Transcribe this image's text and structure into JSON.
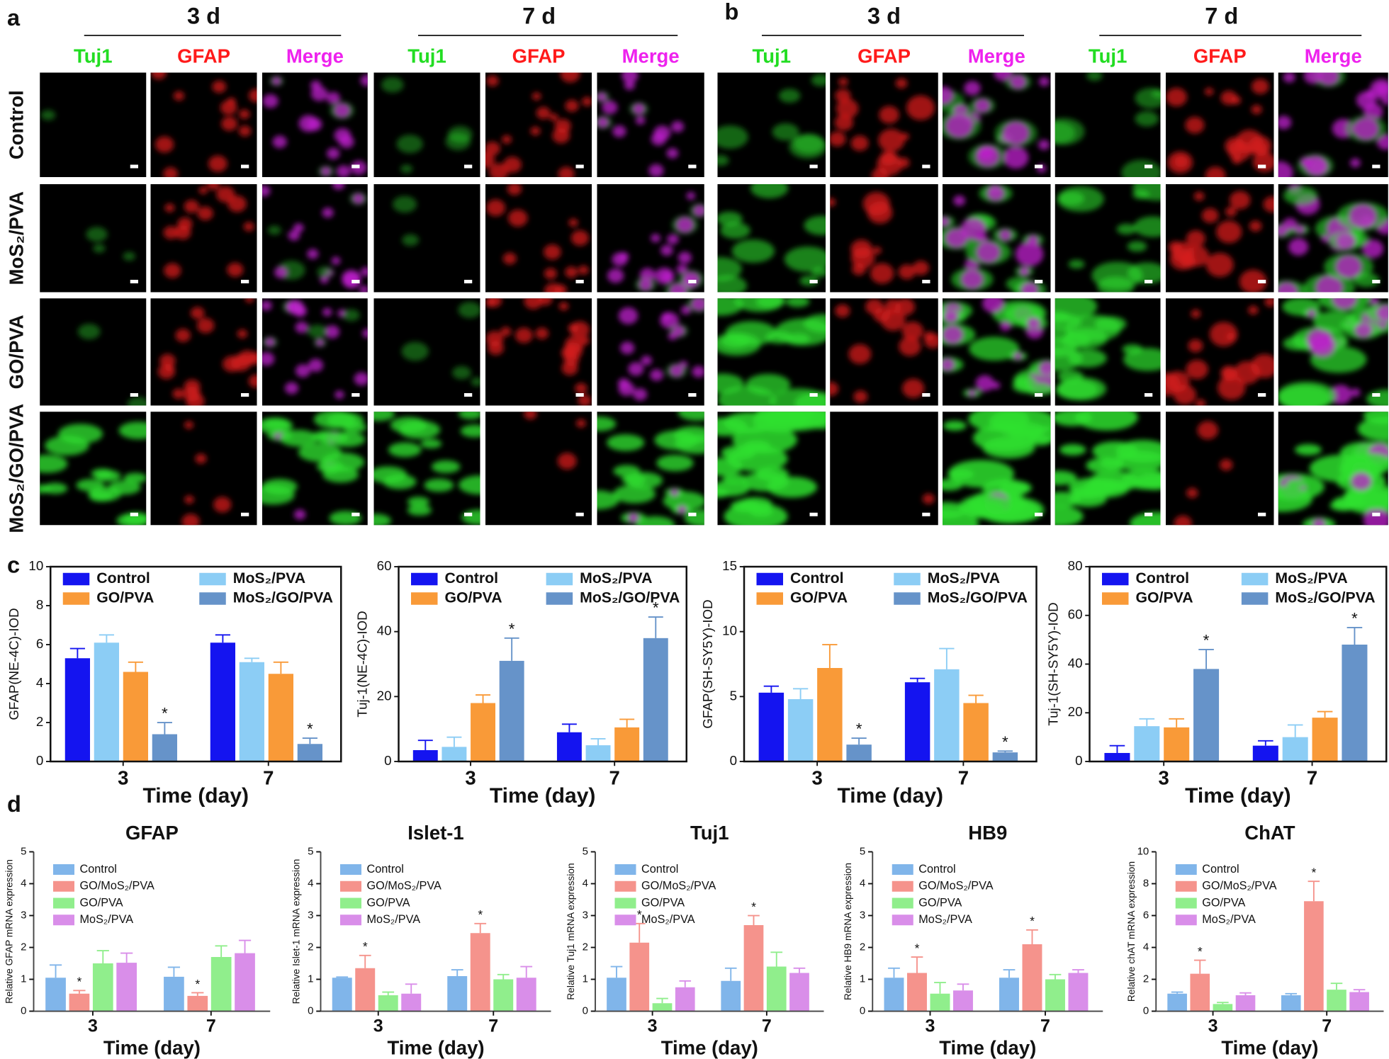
{
  "figure": {
    "rows": [
      "Control",
      "MoS₂/PVA",
      "GO/PVA",
      "MoS₂/GO/PVA"
    ],
    "image_panels": [
      {
        "label": "a",
        "groups": [
          {
            "title": "3 d",
            "channels": [
              "Tuj1",
              "GFAP",
              "Merge"
            ]
          },
          {
            "title": "7 d",
            "channels": [
              "Tuj1",
              "GFAP",
              "Merge"
            ]
          }
        ]
      },
      {
        "label": "b",
        "groups": [
          {
            "title": "3 d",
            "channels": [
              "Tuj1",
              "GFAP",
              "Merge"
            ]
          },
          {
            "title": "7 d",
            "channels": [
              "Tuj1",
              "GFAP",
              "Merge"
            ]
          }
        ]
      }
    ],
    "chart_panels": [
      "c",
      "d"
    ]
  },
  "chart_data": [
    {
      "type": "bar",
      "ylabel": "GFAP(NE-4C)-IOD",
      "xlabel": "Time (day)",
      "categories": [
        "3",
        "7"
      ],
      "ylim": [
        0,
        10
      ],
      "yticks": [
        0,
        2,
        4,
        6,
        8,
        10
      ],
      "frame": true,
      "legend": "top",
      "legend_columns": 2,
      "series": [
        {
          "name": "Control",
          "color": "#1414f0",
          "values": [
            5.3,
            6.1
          ],
          "errors": [
            0.5,
            0.4
          ],
          "significance": [
            null,
            null
          ]
        },
        {
          "name": "MoS₂/PVA",
          "color": "#8ccdf5",
          "values": [
            6.1,
            5.1
          ],
          "errors": [
            0.4,
            0.2
          ],
          "significance": [
            null,
            null
          ]
        },
        {
          "name": "GO/PVA",
          "color": "#f99a38",
          "values": [
            4.6,
            4.5
          ],
          "errors": [
            0.5,
            0.6
          ],
          "significance": [
            null,
            null
          ]
        },
        {
          "name": "MoS₂/GO/PVA",
          "color": "#6693c9",
          "values": [
            1.4,
            0.9
          ],
          "errors": [
            0.6,
            0.3
          ],
          "significance": [
            "*",
            "*"
          ]
        }
      ]
    },
    {
      "type": "bar",
      "ylabel": "Tuj-1(NE-4C)-IOD",
      "xlabel": "Time (day)",
      "categories": [
        "3",
        "7"
      ],
      "ylim": [
        0,
        60
      ],
      "yticks": [
        0,
        20,
        40,
        60
      ],
      "frame": true,
      "legend": "top",
      "legend_columns": 2,
      "series": [
        {
          "name": "Control",
          "color": "#1414f0",
          "values": [
            3.5,
            9
          ],
          "errors": [
            3,
            2.5
          ],
          "significance": [
            null,
            null
          ]
        },
        {
          "name": "MoS₂/PVA",
          "color": "#8ccdf5",
          "values": [
            4.5,
            5
          ],
          "errors": [
            3,
            2
          ],
          "significance": [
            null,
            null
          ]
        },
        {
          "name": "GO/PVA",
          "color": "#f99a38",
          "values": [
            18,
            10.5
          ],
          "errors": [
            2.5,
            2.5
          ],
          "significance": [
            null,
            null
          ]
        },
        {
          "name": "MoS₂/GO/PVA",
          "color": "#6693c9",
          "values": [
            31,
            38
          ],
          "errors": [
            7,
            6.5
          ],
          "significance": [
            "*",
            "*"
          ]
        }
      ]
    },
    {
      "type": "bar",
      "ylabel": "GFAP(SH-SY5Y)-IOD",
      "xlabel": "Time (day)",
      "categories": [
        "3",
        "7"
      ],
      "ylim": [
        0,
        15
      ],
      "yticks": [
        0,
        5,
        10,
        15
      ],
      "frame": true,
      "legend": "top",
      "legend_columns": 2,
      "series": [
        {
          "name": "Control",
          "color": "#1414f0",
          "values": [
            5.3,
            6.1
          ],
          "errors": [
            0.5,
            0.3
          ],
          "significance": [
            null,
            null
          ]
        },
        {
          "name": "MoS₂/PVA",
          "color": "#8ccdf5",
          "values": [
            4.8,
            7.1
          ],
          "errors": [
            0.8,
            1.6
          ],
          "significance": [
            null,
            null
          ]
        },
        {
          "name": "GO/PVA",
          "color": "#f99a38",
          "values": [
            7.2,
            4.5
          ],
          "errors": [
            1.8,
            0.6
          ],
          "significance": [
            null,
            null
          ]
        },
        {
          "name": "MoS₂/GO/PVA",
          "color": "#6693c9",
          "values": [
            1.3,
            0.7
          ],
          "errors": [
            0.5,
            0.1
          ],
          "significance": [
            "*",
            "*"
          ]
        }
      ]
    },
    {
      "type": "bar",
      "ylabel": "Tuj-1(SH-SY5Y)-IOD",
      "xlabel": "Time (day)",
      "categories": [
        "3",
        "7"
      ],
      "ylim": [
        0,
        80
      ],
      "yticks": [
        0,
        20,
        40,
        60,
        80
      ],
      "frame": true,
      "legend": "top",
      "legend_columns": 2,
      "series": [
        {
          "name": "Control",
          "color": "#1414f0",
          "values": [
            3.5,
            6.5
          ],
          "errors": [
            3,
            2
          ],
          "significance": [
            null,
            null
          ]
        },
        {
          "name": "MoS₂/PVA",
          "color": "#8ccdf5",
          "values": [
            14.5,
            10
          ],
          "errors": [
            3,
            5
          ],
          "significance": [
            null,
            null
          ]
        },
        {
          "name": "GO/PVA",
          "color": "#f99a38",
          "values": [
            14,
            18
          ],
          "errors": [
            3.5,
            2.5
          ],
          "significance": [
            null,
            null
          ]
        },
        {
          "name": "MoS₂/GO/PVA",
          "color": "#6693c9",
          "values": [
            38,
            48
          ],
          "errors": [
            8,
            7
          ],
          "significance": [
            "*",
            "*"
          ]
        }
      ]
    },
    {
      "type": "bar",
      "title": "GFAP",
      "ylabel": "Relative GFAP mRNA expression",
      "xlabel": "Time (day)",
      "categories": [
        "3",
        "7"
      ],
      "ylim": [
        0,
        5
      ],
      "yticks": [
        0,
        1,
        2,
        3,
        4,
        5
      ],
      "frame": false,
      "legend": "top-left",
      "legend_columns": 1,
      "series": [
        {
          "name": "Control",
          "color": "#80b5ea",
          "values": [
            1.05,
            1.08
          ],
          "errors": [
            0.4,
            0.3
          ],
          "significance": [
            null,
            null
          ]
        },
        {
          "name": "GO/MoS₂/PVA",
          "color": "#f5938c",
          "values": [
            0.55,
            0.48
          ],
          "errors": [
            0.1,
            0.1
          ],
          "significance": [
            "*",
            "*"
          ]
        },
        {
          "name": "GO/PVA",
          "color": "#90ee8c",
          "values": [
            1.5,
            1.7
          ],
          "errors": [
            0.4,
            0.35
          ],
          "significance": [
            null,
            null
          ]
        },
        {
          "name": "MoS₂/PVA",
          "color": "#d98ee9",
          "values": [
            1.52,
            1.82
          ],
          "errors": [
            0.3,
            0.4
          ],
          "significance": [
            null,
            null
          ]
        }
      ]
    },
    {
      "type": "bar",
      "title": "Islet-1",
      "ylabel": "Relative Islet-1 mRNA expression",
      "xlabel": "Time (day)",
      "categories": [
        "3",
        "7"
      ],
      "ylim": [
        0,
        5
      ],
      "yticks": [
        0,
        1,
        2,
        3,
        4,
        5
      ],
      "frame": false,
      "legend": "top-left",
      "legend_columns": 1,
      "series": [
        {
          "name": "Control",
          "color": "#80b5ea",
          "values": [
            1.05,
            1.1
          ],
          "errors": [
            0.02,
            0.2
          ],
          "significance": [
            null,
            null
          ]
        },
        {
          "name": "GO/MoS₂/PVA",
          "color": "#f5938c",
          "values": [
            1.35,
            2.45
          ],
          "errors": [
            0.4,
            0.3
          ],
          "significance": [
            "*",
            "*"
          ]
        },
        {
          "name": "GO/PVA",
          "color": "#90ee8c",
          "values": [
            0.5,
            1.0
          ],
          "errors": [
            0.1,
            0.15
          ],
          "significance": [
            null,
            null
          ]
        },
        {
          "name": "MoS₂/PVA",
          "color": "#d98ee9",
          "values": [
            0.55,
            1.05
          ],
          "errors": [
            0.3,
            0.35
          ],
          "significance": [
            null,
            null
          ]
        }
      ]
    },
    {
      "type": "bar",
      "title": "Tuj1",
      "ylabel": "Relative Tuj1 mRNA expression",
      "xlabel": "Time (day)",
      "categories": [
        "3",
        "7"
      ],
      "ylim": [
        0,
        5
      ],
      "yticks": [
        0,
        1,
        2,
        3,
        4,
        5
      ],
      "frame": false,
      "legend": "top-left",
      "legend_columns": 1,
      "series": [
        {
          "name": "Control",
          "color": "#80b5ea",
          "values": [
            1.05,
            0.95
          ],
          "errors": [
            0.35,
            0.4
          ],
          "significance": [
            null,
            null
          ]
        },
        {
          "name": "GO/MoS₂/PVA",
          "color": "#f5938c",
          "values": [
            2.15,
            2.7
          ],
          "errors": [
            0.6,
            0.3
          ],
          "significance": [
            "*",
            "*"
          ]
        },
        {
          "name": "GO/PVA",
          "color": "#90ee8c",
          "values": [
            0.25,
            1.4
          ],
          "errors": [
            0.15,
            0.45
          ],
          "significance": [
            null,
            null
          ]
        },
        {
          "name": "MoS₂/PVA",
          "color": "#d98ee9",
          "values": [
            0.75,
            1.2
          ],
          "errors": [
            0.2,
            0.15
          ],
          "significance": [
            null,
            null
          ]
        }
      ]
    },
    {
      "type": "bar",
      "title": "HB9",
      "ylabel": "Relative HB9 mRNA expression",
      "xlabel": "Time (day)",
      "categories": [
        "3",
        "7"
      ],
      "ylim": [
        0,
        5
      ],
      "yticks": [
        0,
        1,
        2,
        3,
        4,
        5
      ],
      "frame": false,
      "legend": "top-left",
      "legend_columns": 1,
      "series": [
        {
          "name": "Control",
          "color": "#80b5ea",
          "values": [
            1.05,
            1.05
          ],
          "errors": [
            0.3,
            0.25
          ],
          "significance": [
            null,
            null
          ]
        },
        {
          "name": "GO/MoS₂/PVA",
          "color": "#f5938c",
          "values": [
            1.2,
            2.1
          ],
          "errors": [
            0.5,
            0.45
          ],
          "significance": [
            "*",
            "*"
          ]
        },
        {
          "name": "GO/PVA",
          "color": "#90ee8c",
          "values": [
            0.55,
            1.0
          ],
          "errors": [
            0.35,
            0.15
          ],
          "significance": [
            null,
            null
          ]
        },
        {
          "name": "MoS₂/PVA",
          "color": "#d98ee9",
          "values": [
            0.65,
            1.2
          ],
          "errors": [
            0.2,
            0.1
          ],
          "significance": [
            null,
            null
          ]
        }
      ]
    },
    {
      "type": "bar",
      "title": "ChAT",
      "ylabel": "Relative chAT mRNA expression",
      "xlabel": "Time (day)",
      "categories": [
        "3",
        "7"
      ],
      "ylim": [
        0,
        10
      ],
      "yticks": [
        0,
        2,
        4,
        6,
        8,
        10
      ],
      "frame": false,
      "legend": "top-left",
      "legend_columns": 1,
      "series": [
        {
          "name": "Control",
          "color": "#80b5ea",
          "values": [
            1.1,
            1.0
          ],
          "errors": [
            0.1,
            0.1
          ],
          "significance": [
            null,
            null
          ]
        },
        {
          "name": "GO/MoS₂/PVA",
          "color": "#f5938c",
          "values": [
            2.35,
            6.9
          ],
          "errors": [
            0.85,
            1.25
          ],
          "significance": [
            "*",
            "*"
          ]
        },
        {
          "name": "GO/PVA",
          "color": "#90ee8c",
          "values": [
            0.45,
            1.35
          ],
          "errors": [
            0.1,
            0.4
          ],
          "significance": [
            null,
            null
          ]
        },
        {
          "name": "MoS₂/PVA",
          "color": "#d98ee9",
          "values": [
            1.0,
            1.2
          ],
          "errors": [
            0.15,
            0.15
          ],
          "significance": [
            null,
            null
          ]
        }
      ]
    }
  ]
}
